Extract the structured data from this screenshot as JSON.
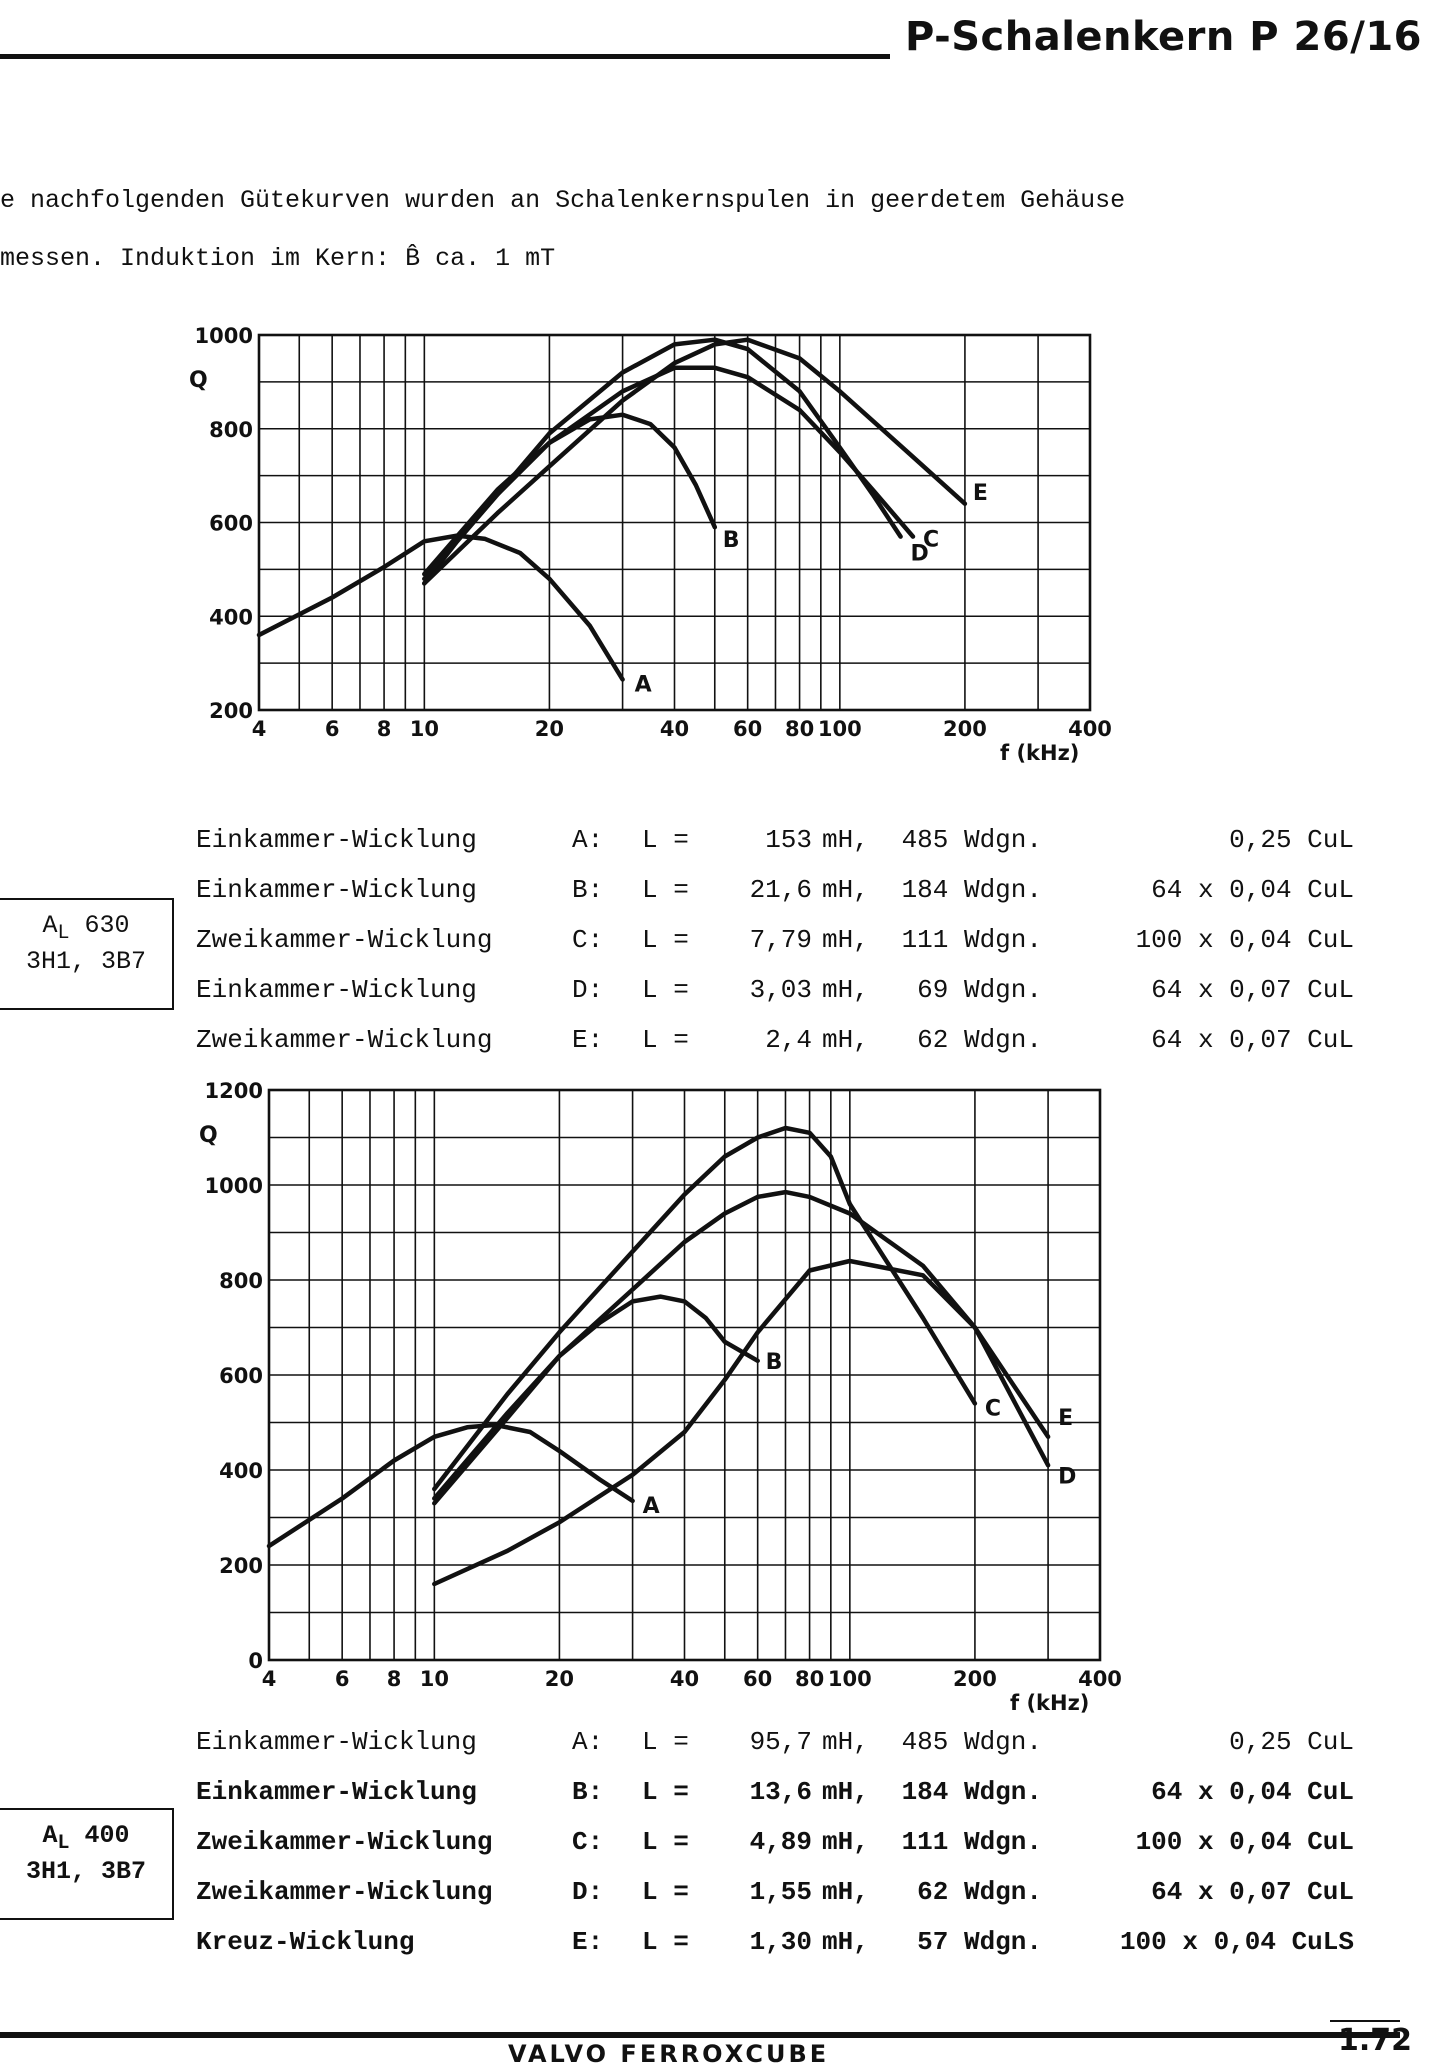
{
  "header": {
    "title": "P-Schalenkern P 26/16"
  },
  "intro": {
    "line1": "e nachfolgenden Gütekurven wurden an Schalenkernspulen in geerdetem Gehäuse",
    "line2": "messen. Induktion im Kern: B̂ ca. 1 mT"
  },
  "chart_data": [
    {
      "type": "line",
      "x_scale": "log",
      "xlim": [
        4,
        400
      ],
      "ylim": [
        200,
        1000
      ],
      "ylabel": "Q",
      "xlabel": "f (kHz)",
      "x_ticks": [
        "4",
        "6",
        "8",
        "10",
        "20",
        "40",
        "60",
        "80",
        "100",
        "200",
        "400"
      ],
      "y_ticks": [
        "200",
        "400",
        "600",
        "800",
        "1000"
      ],
      "grid": true,
      "series": [
        {
          "name": "A",
          "x": [
            4,
            6,
            8,
            10,
            12,
            14,
            17,
            20,
            25,
            30
          ],
          "y": [
            360,
            440,
            505,
            560,
            572,
            565,
            535,
            480,
            380,
            265
          ]
        },
        {
          "name": "B",
          "x": [
            10,
            12,
            15,
            20,
            25,
            30,
            35,
            40,
            45,
            50
          ],
          "y": [
            470,
            560,
            660,
            770,
            820,
            830,
            810,
            760,
            680,
            590
          ]
        },
        {
          "name": "C",
          "x": [
            10,
            15,
            20,
            30,
            40,
            50,
            60,
            80,
            100,
            120,
            150
          ],
          "y": [
            490,
            670,
            770,
            880,
            930,
            930,
            910,
            840,
            750,
            670,
            570
          ]
        },
        {
          "name": "D",
          "x": [
            10,
            15,
            20,
            30,
            40,
            50,
            60,
            80,
            100,
            120,
            140
          ],
          "y": [
            480,
            660,
            790,
            920,
            980,
            990,
            970,
            880,
            760,
            660,
            570
          ]
        },
        {
          "name": "E",
          "x": [
            10,
            15,
            20,
            30,
            40,
            50,
            60,
            80,
            100,
            150,
            200
          ],
          "y": [
            470,
            620,
            720,
            860,
            940,
            980,
            990,
            950,
            880,
            740,
            640
          ]
        }
      ]
    },
    {
      "type": "line",
      "x_scale": "log",
      "xlim": [
        4,
        400
      ],
      "ylim": [
        0,
        1200
      ],
      "ylabel": "Q",
      "xlabel": "f (kHz)",
      "x_ticks": [
        "4",
        "6",
        "8",
        "10",
        "20",
        "40",
        "60",
        "80",
        "100",
        "200",
        "400"
      ],
      "y_ticks": [
        "0",
        "200",
        "400",
        "600",
        "800",
        "1000",
        "1200"
      ],
      "grid": true,
      "series": [
        {
          "name": "A",
          "x": [
            4,
            6,
            8,
            10,
            12,
            14,
            17,
            20,
            25,
            30
          ],
          "y": [
            240,
            340,
            420,
            470,
            490,
            495,
            480,
            440,
            380,
            335
          ]
        },
        {
          "name": "B",
          "x": [
            10,
            15,
            20,
            25,
            30,
            35,
            40,
            45,
            50,
            60
          ],
          "y": [
            340,
            520,
            640,
            710,
            755,
            765,
            755,
            720,
            670,
            630
          ]
        },
        {
          "name": "C",
          "x": [
            10,
            15,
            20,
            30,
            40,
            50,
            60,
            70,
            80,
            90,
            100,
            150,
            200
          ],
          "y": [
            360,
            560,
            690,
            860,
            980,
            1060,
            1100,
            1120,
            1110,
            1060,
            960,
            720,
            540
          ]
        },
        {
          "name": "D",
          "x": [
            10,
            15,
            20,
            30,
            40,
            50,
            60,
            70,
            80,
            100,
            150,
            200,
            300
          ],
          "y": [
            330,
            510,
            640,
            780,
            880,
            940,
            975,
            985,
            975,
            940,
            830,
            700,
            410
          ]
        },
        {
          "name": "E",
          "x": [
            10,
            15,
            20,
            30,
            40,
            50,
            60,
            80,
            100,
            150,
            200,
            300
          ],
          "y": [
            160,
            230,
            290,
            390,
            480,
            590,
            690,
            820,
            840,
            810,
            700,
            470
          ]
        }
      ]
    }
  ],
  "table1": [
    {
      "name": "Einkammer-Wicklung",
      "letter": "A:",
      "l": "L =",
      "value": "153",
      "unit": "mH,",
      "turns": "485 Wdgn.",
      "wire": "0,25 CuL"
    },
    {
      "name": "Einkammer-Wicklung",
      "letter": "B:",
      "l": "L =",
      "value": "21,6",
      "unit": "mH,",
      "turns": "184 Wdgn.",
      "wire": "64 x 0,04 CuL"
    },
    {
      "name": "Zweikammer-Wicklung",
      "letter": "C:",
      "l": "L =",
      "value": "7,79",
      "unit": "mH,",
      "turns": "111 Wdgn.",
      "wire": "100 x 0,04 CuL"
    },
    {
      "name": "Einkammer-Wicklung",
      "letter": "D:",
      "l": "L =",
      "value": "3,03",
      "unit": "mH,",
      "turns": "69 Wdgn.",
      "wire": "64 x 0,07 CuL"
    },
    {
      "name": "Zweikammer-Wicklung",
      "letter": "E:",
      "l": "L =",
      "value": "2,4",
      "unit": "mH,",
      "turns": "62 Wdgn.",
      "wire": "64 x 0,07 CuL"
    }
  ],
  "box1": {
    "al_letter": "A",
    "al_sub": "L",
    "al_value": "630",
    "materials": "3H1, 3B7"
  },
  "table2": [
    {
      "name": "Einkammer-Wicklung",
      "letter": "A:",
      "l": "L =",
      "value": "95,7",
      "unit": "mH,",
      "turns": "485 Wdgn.",
      "wire": "0,25 CuL"
    },
    {
      "name": "Einkammer-Wicklung",
      "letter": "B:",
      "l": "L =",
      "value": "13,6",
      "unit": "mH,",
      "turns": "184 Wdgn.",
      "wire": "64 x 0,04 CuL"
    },
    {
      "name": "Zweikammer-Wicklung",
      "letter": "C:",
      "l": "L =",
      "value": "4,89",
      "unit": "mH,",
      "turns": "111 Wdgn.",
      "wire": "100 x 0,04 CuL"
    },
    {
      "name": "Zweikammer-Wicklung",
      "letter": "D:",
      "l": "L =",
      "value": "1,55",
      "unit": "mH,",
      "turns": "62 Wdgn.",
      "wire": "64 x 0,07 CuL"
    },
    {
      "name": "Kreuz-Wicklung",
      "letter": "E:",
      "l": "L =",
      "value": "1,30",
      "unit": "mH,",
      "turns": "57 Wdgn.",
      "wire": "100 x 0,04 CuLS"
    }
  ],
  "box2": {
    "al_letter": "A",
    "al_sub": "L",
    "al_value": "400",
    "materials": "3H1, 3B7"
  },
  "footer": {
    "brand": "VALVO FERROXCUBE",
    "page": "1.72"
  }
}
